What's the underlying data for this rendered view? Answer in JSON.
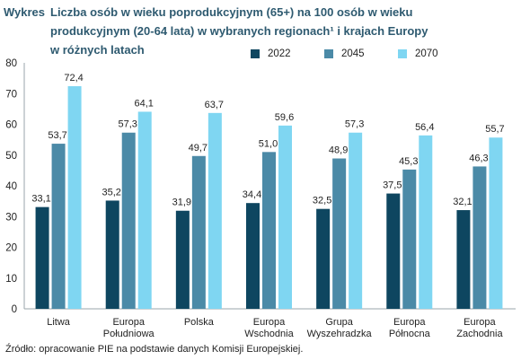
{
  "title": {
    "lead": "Wykres",
    "lines": [
      "Liczba osób w wieku poprodukcyjnym (65+) na 100 osób w wieku",
      "produkcyjnym (20-64 lata) w wybranych regionach¹ i krajach Europy",
      "w różnych latach"
    ]
  },
  "source": "Źródło: opracowanie PIE na podstawie danych Komisji Europejskiej.",
  "colors": {
    "s2022": "#0e4660",
    "s2045": "#4b8aa7",
    "s2070": "#7fd6f2",
    "axis": "#9aa4ab"
  },
  "chart_data": {
    "type": "bar",
    "categories": [
      [
        "Litwa"
      ],
      [
        "Europa",
        "Południowa"
      ],
      [
        "Polska"
      ],
      [
        "Europa",
        "Wschodnia"
      ],
      [
        "Grupa",
        "Wyszehradzka"
      ],
      [
        "Europa",
        "Północna"
      ],
      [
        "Europa",
        "Zachodnia"
      ]
    ],
    "series": [
      {
        "name": "2022",
        "values": [
          33.1,
          35.2,
          31.9,
          34.4,
          32.5,
          37.5,
          32.1
        ],
        "labels": [
          "33,1",
          "35,2",
          "31,9",
          "34,4",
          "32,5",
          "37,5",
          "32,1"
        ]
      },
      {
        "name": "2045",
        "values": [
          53.7,
          57.3,
          49.7,
          51.0,
          48.9,
          45.3,
          46.3
        ],
        "labels": [
          "53,7",
          "57,3",
          "49,7",
          "51,0",
          "48,9",
          "45,3",
          "46,3"
        ]
      },
      {
        "name": "2070",
        "values": [
          72.4,
          64.1,
          63.7,
          59.6,
          57.3,
          56.4,
          55.7
        ],
        "labels": [
          "72,4",
          "64,1",
          "63,7",
          "59,6",
          "57,3",
          "56,4",
          "55,7"
        ]
      }
    ],
    "yticks": [
      "0",
      "10",
      "20",
      "30",
      "40",
      "50",
      "60",
      "70",
      "80"
    ],
    "ylim": [
      0,
      80
    ],
    "grid": false,
    "legend": "top-right"
  }
}
